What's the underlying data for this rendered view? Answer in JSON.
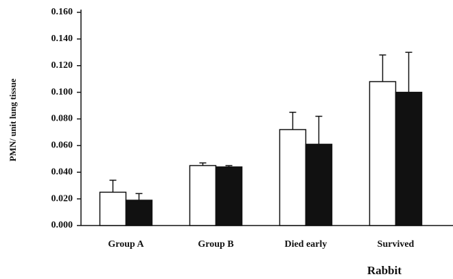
{
  "chart_data": {
    "type": "bar",
    "y_label": "PMN/ unit lung tissue",
    "x_label": "Rabbit",
    "categories": [
      "Group A",
      "Group B",
      "Died early",
      "Survived"
    ],
    "series": [
      {
        "color": "#ffffff",
        "values": [
          0.025,
          0.045,
          0.072,
          0.108
        ],
        "errors": [
          0.009,
          0.002,
          0.013,
          0.02
        ]
      },
      {
        "color": "#111111",
        "values": [
          0.019,
          0.044,
          0.061,
          0.1
        ],
        "errors": [
          0.005,
          0.001,
          0.021,
          0.03
        ]
      }
    ],
    "ylim": [
      0,
      0.16
    ],
    "yticks": [
      {
        "value": 0,
        "label": "0.000"
      },
      {
        "value": 0.02,
        "label": "0.020"
      },
      {
        "value": 0.04,
        "label": "0.040"
      },
      {
        "value": 0.06,
        "label": "0.060"
      },
      {
        "value": 0.08,
        "label": "0.080"
      },
      {
        "value": 0.1,
        "label": "0.100"
      },
      {
        "value": 0.12,
        "label": "0.120"
      },
      {
        "value": 0.14,
        "label": "0.140"
      },
      {
        "value": 0.16,
        "label": "0.160"
      }
    ],
    "grid": false
  }
}
